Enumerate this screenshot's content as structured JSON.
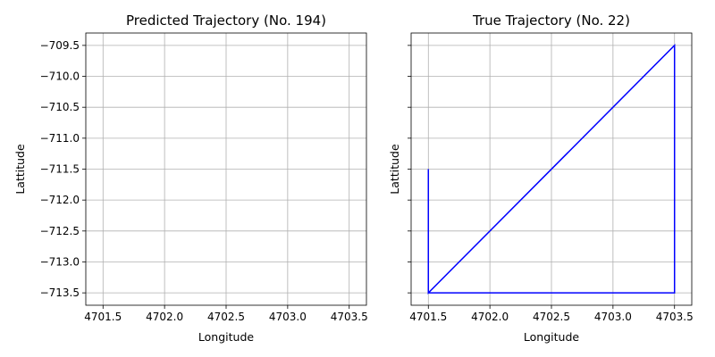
{
  "chart_data": [
    {
      "type": "line",
      "title": "Predicted Trajectory (No. 194)",
      "xlabel": "Longitude",
      "ylabel": "Lattitude",
      "xlim": [
        4701.36,
        4703.64
      ],
      "ylim": [
        -713.7,
        -709.3
      ],
      "xticks": [
        4701.5,
        4702.0,
        4702.5,
        4703.0,
        4703.5
      ],
      "xtick_labels": [
        "4701.5",
        "4702.0",
        "4702.5",
        "4703.0",
        "4703.5"
      ],
      "yticks": [
        -713.5,
        -713.0,
        -712.5,
        -712.0,
        -711.5,
        -711.0,
        -710.5,
        -710.0,
        -709.5
      ],
      "ytick_labels": [
        "−713.5",
        "−713.0",
        "−712.5",
        "−712.0",
        "−711.5",
        "−711.0",
        "−710.5",
        "−710.0",
        "−709.5"
      ],
      "grid": true,
      "series": [
        {
          "color": "#0000ff",
          "x": [],
          "y": []
        }
      ]
    },
    {
      "type": "line",
      "title": "True Trajectory (No. 22)",
      "xlabel": "Longitude",
      "ylabel": "Lattitude",
      "xlim": [
        4701.36,
        4703.64
      ],
      "ylim": [
        -713.7,
        -709.3
      ],
      "xticks": [
        4701.5,
        4702.0,
        4702.5,
        4703.0,
        4703.5
      ],
      "xtick_labels": [
        "4701.5",
        "4702.0",
        "4702.5",
        "4703.0",
        "4703.5"
      ],
      "yticks": [
        -713.5,
        -713.0,
        -712.5,
        -712.0,
        -711.5,
        -711.0,
        -710.5,
        -710.0,
        -709.5
      ],
      "ytick_labels": [],
      "grid": true,
      "series": [
        {
          "color": "#0000ff",
          "x": [
            4701.5,
            4701.5,
            4703.5,
            4703.5,
            4701.5
          ],
          "y": [
            -711.5,
            -713.5,
            -709.5,
            -713.5,
            -713.5
          ]
        }
      ]
    }
  ]
}
